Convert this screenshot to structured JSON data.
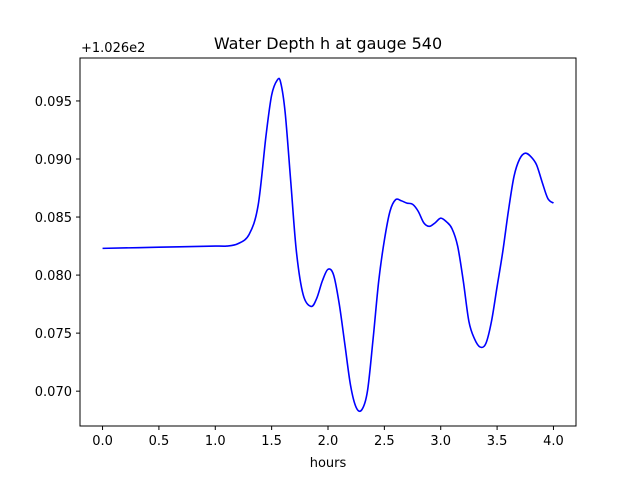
{
  "chart_data": {
    "type": "line",
    "title": "Water Depth h at gauge 540",
    "xlabel": "hours",
    "ylabel": "",
    "y_offset_label": "+1.026e2",
    "xlim": [
      -0.2,
      4.2
    ],
    "ylim": [
      0.067,
      0.0987
    ],
    "xticks": [
      0.0,
      0.5,
      1.0,
      1.5,
      2.0,
      2.5,
      3.0,
      3.5,
      4.0
    ],
    "xtick_labels": [
      "0.0",
      "0.5",
      "1.0",
      "1.5",
      "2.0",
      "2.5",
      "3.0",
      "3.5",
      "4.0"
    ],
    "yticks": [
      0.07,
      0.075,
      0.08,
      0.085,
      0.09,
      0.095
    ],
    "ytick_labels": [
      "0.070",
      "0.075",
      "0.080",
      "0.085",
      "0.090",
      "0.095"
    ],
    "grid": false,
    "series": [
      {
        "color": "#0000ff",
        "x": [
          0.0,
          0.5,
          1.0,
          1.1,
          1.2,
          1.3,
          1.38,
          1.45,
          1.5,
          1.55,
          1.58,
          1.62,
          1.67,
          1.72,
          1.78,
          1.85,
          1.9,
          1.95,
          2.0,
          2.05,
          2.1,
          2.15,
          2.2,
          2.25,
          2.3,
          2.35,
          2.4,
          2.45,
          2.5,
          2.55,
          2.6,
          2.65,
          2.7,
          2.75,
          2.8,
          2.85,
          2.9,
          2.95,
          3.0,
          3.05,
          3.1,
          3.15,
          3.2,
          3.25,
          3.3,
          3.35,
          3.4,
          3.45,
          3.5,
          3.55,
          3.6,
          3.65,
          3.7,
          3.75,
          3.8,
          3.85,
          3.9,
          3.95,
          4.0
        ],
        "values": [
          0.0823,
          0.0824,
          0.0825,
          0.0825,
          0.0827,
          0.0835,
          0.086,
          0.092,
          0.0955,
          0.0968,
          0.0966,
          0.094,
          0.088,
          0.082,
          0.0783,
          0.0773,
          0.078,
          0.0795,
          0.0805,
          0.08,
          0.0775,
          0.074,
          0.0705,
          0.0686,
          0.0684,
          0.07,
          0.0745,
          0.0795,
          0.083,
          0.0855,
          0.0865,
          0.0864,
          0.0862,
          0.0861,
          0.0855,
          0.0845,
          0.0842,
          0.0845,
          0.0849,
          0.0846,
          0.084,
          0.0825,
          0.0795,
          0.076,
          0.0745,
          0.0738,
          0.0741,
          0.076,
          0.079,
          0.082,
          0.0855,
          0.0885,
          0.09,
          0.0905,
          0.0902,
          0.0895,
          0.088,
          0.0866,
          0.0862
        ]
      }
    ]
  }
}
